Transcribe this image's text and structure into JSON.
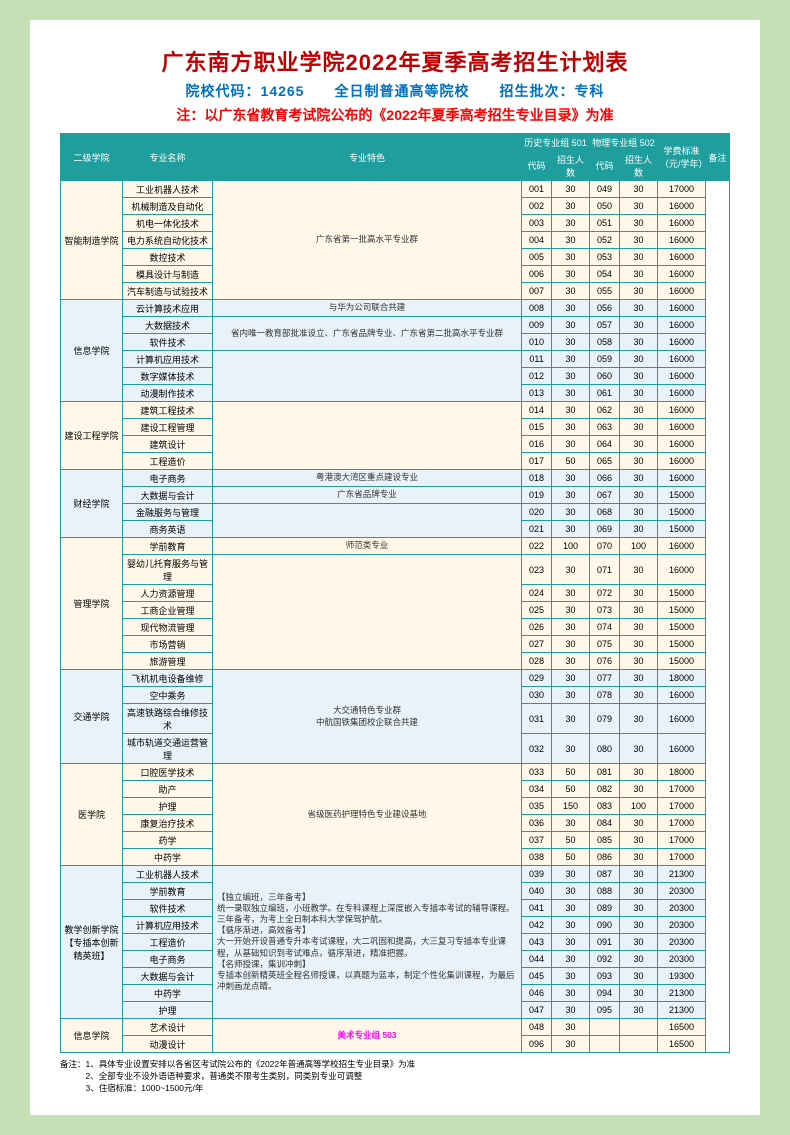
{
  "title": "广东南方职业学院2022年夏季高考招生计划表",
  "subtitle": "院校代码：14265　　全日制普通高等院校　　招生批次：专科",
  "note": "注：以广东省教育考试院公布的《2022年夏季高考招生专业目录》为准",
  "headers": {
    "college": "二级学院",
    "major": "专业名称",
    "feature": "专业特色",
    "hist": "历史专业组 501",
    "phys": "物理专业组 502",
    "code": "代码",
    "quota": "招生人数",
    "fee": "学费标准（元/学年）",
    "remark": "备注"
  },
  "footer": [
    "备注：1、具体专业设置安排以各省区考试院公布的《2022年普通高等学校招生专业目录》为准",
    "　　　2、全部专业不设外语语种要求，普通类不限考生类别，同类别专业可调整",
    "　　　3、住宿标准：1000~1500元/年"
  ],
  "colleges": [
    {
      "name": "智能制造学院",
      "feature": "广东省第一批高水平专业群",
      "rows": [
        {
          "m": "工业机器人技术",
          "c1": "001",
          "q1": "30",
          "c2": "049",
          "q2": "30",
          "f": "17000"
        },
        {
          "m": "机械制造及自动化",
          "c1": "002",
          "q1": "30",
          "c2": "050",
          "q2": "30",
          "f": "16000"
        },
        {
          "m": "机电一体化技术",
          "c1": "003",
          "q1": "30",
          "c2": "051",
          "q2": "30",
          "f": "16000"
        },
        {
          "m": "电力系统自动化技术",
          "c1": "004",
          "q1": "30",
          "c2": "052",
          "q2": "30",
          "f": "16000"
        },
        {
          "m": "数控技术",
          "c1": "005",
          "q1": "30",
          "c2": "053",
          "q2": "30",
          "f": "16000"
        },
        {
          "m": "模具设计与制造",
          "c1": "006",
          "q1": "30",
          "c2": "054",
          "q2": "30",
          "f": "16000"
        },
        {
          "m": "汽车制造与试验技术",
          "c1": "007",
          "q1": "30",
          "c2": "055",
          "q2": "30",
          "f": "16000"
        }
      ]
    },
    {
      "name": "信息学院",
      "rows": [
        {
          "m": "云计算技术应用",
          "ft": "与华为公司联合共建",
          "c1": "008",
          "q1": "30",
          "c2": "056",
          "q2": "30",
          "f": "16000"
        },
        {
          "m": "大数据技术",
          "ft": "省内唯一教育部批准设立、广东省品牌专业、广东省第二批高水平专业群",
          "fspan": 2,
          "c1": "009",
          "q1": "30",
          "c2": "057",
          "q2": "30",
          "f": "16000"
        },
        {
          "m": "软件技术",
          "c1": "010",
          "q1": "30",
          "c2": "058",
          "q2": "30",
          "f": "16000"
        },
        {
          "m": "计算机应用技术",
          "ft": "",
          "fspan": 3,
          "c1": "011",
          "q1": "30",
          "c2": "059",
          "q2": "30",
          "f": "16000"
        },
        {
          "m": "数字媒体技术",
          "c1": "012",
          "q1": "30",
          "c2": "060",
          "q2": "30",
          "f": "16000"
        },
        {
          "m": "动漫制作技术",
          "c1": "013",
          "q1": "30",
          "c2": "061",
          "q2": "30",
          "f": "16000"
        }
      ]
    },
    {
      "name": "建设工程学院",
      "feature": "",
      "rows": [
        {
          "m": "建筑工程技术",
          "c1": "014",
          "q1": "30",
          "c2": "062",
          "q2": "30",
          "f": "16000"
        },
        {
          "m": "建设工程管理",
          "c1": "015",
          "q1": "30",
          "c2": "063",
          "q2": "30",
          "f": "16000"
        },
        {
          "m": "建筑设计",
          "c1": "016",
          "q1": "30",
          "c2": "064",
          "q2": "30",
          "f": "16000"
        },
        {
          "m": "工程造价",
          "c1": "017",
          "q1": "50",
          "c2": "065",
          "q2": "30",
          "f": "16000"
        }
      ]
    },
    {
      "name": "财经学院",
      "rows": [
        {
          "m": "电子商务",
          "ft": "粤港澳大湾区重点建设专业",
          "c1": "018",
          "q1": "30",
          "c2": "066",
          "q2": "30",
          "f": "16000"
        },
        {
          "m": "大数据与会计",
          "ft": "广东省品牌专业",
          "c1": "019",
          "q1": "30",
          "c2": "067",
          "q2": "30",
          "f": "15000"
        },
        {
          "m": "金融服务与管理",
          "ft": "",
          "fspan": 2,
          "c1": "020",
          "q1": "30",
          "c2": "068",
          "q2": "30",
          "f": "15000"
        },
        {
          "m": "商务英语",
          "c1": "021",
          "q1": "30",
          "c2": "069",
          "q2": "30",
          "f": "15000"
        }
      ]
    },
    {
      "name": "管理学院",
      "rows": [
        {
          "m": "学前教育",
          "ft": "师范类专业",
          "c1": "022",
          "q1": "100",
          "c2": "070",
          "q2": "100",
          "f": "16000"
        },
        {
          "m": "婴幼儿托育服务与管理",
          "ft": "",
          "fspan": 6,
          "c1": "023",
          "q1": "30",
          "c2": "071",
          "q2": "30",
          "f": "16000"
        },
        {
          "m": "人力资源管理",
          "c1": "024",
          "q1": "30",
          "c2": "072",
          "q2": "30",
          "f": "15000"
        },
        {
          "m": "工商企业管理",
          "c1": "025",
          "q1": "30",
          "c2": "073",
          "q2": "30",
          "f": "15000"
        },
        {
          "m": "现代物流管理",
          "c1": "026",
          "q1": "30",
          "c2": "074",
          "q2": "30",
          "f": "15000"
        },
        {
          "m": "市场营销",
          "c1": "027",
          "q1": "30",
          "c2": "075",
          "q2": "30",
          "f": "15000"
        },
        {
          "m": "旅游管理",
          "c1": "028",
          "q1": "30",
          "c2": "076",
          "q2": "30",
          "f": "15000"
        }
      ]
    },
    {
      "name": "交通学院",
      "feature": "大交通特色专业群\n中航国铁集团校企联合共建",
      "rows": [
        {
          "m": "飞机机电设备维修",
          "c1": "029",
          "q1": "30",
          "c2": "077",
          "q2": "30",
          "f": "18000"
        },
        {
          "m": "空中乘务",
          "c1": "030",
          "q1": "30",
          "c2": "078",
          "q2": "30",
          "f": "16000"
        },
        {
          "m": "高速铁路综合维修技术",
          "c1": "031",
          "q1": "30",
          "c2": "079",
          "q2": "30",
          "f": "16000"
        },
        {
          "m": "城市轨道交通运营管理",
          "c1": "032",
          "q1": "30",
          "c2": "080",
          "q2": "30",
          "f": "16000"
        }
      ]
    },
    {
      "name": "医学院",
      "feature": "省级医药护理特色专业建设基地",
      "rows": [
        {
          "m": "口腔医学技术",
          "c1": "033",
          "q1": "50",
          "c2": "081",
          "q2": "30",
          "f": "18000"
        },
        {
          "m": "助产",
          "c1": "034",
          "q1": "50",
          "c2": "082",
          "q2": "30",
          "f": "17000"
        },
        {
          "m": "护理",
          "c1": "035",
          "q1": "150",
          "c2": "083",
          "q2": "100",
          "f": "17000"
        },
        {
          "m": "康复治疗技术",
          "c1": "036",
          "q1": "30",
          "c2": "084",
          "q2": "30",
          "f": "17000"
        },
        {
          "m": "药学",
          "c1": "037",
          "q1": "50",
          "c2": "085",
          "q2": "30",
          "f": "17000"
        },
        {
          "m": "中药学",
          "c1": "038",
          "q1": "50",
          "c2": "086",
          "q2": "30",
          "f": "17000"
        }
      ]
    },
    {
      "name": "教学创新学院\n【专插本创新精英班】",
      "feature": "【独立编班，三年备考】\n统一录取独立编班，小班教学。在专科课程上深度嵌入专插本考试的辅导课程。三年备考，为考上全日制本科大学保驾护航。\n【循序渐进，高效备考】\n大一开始开设普通专升本考试课程，大二巩固和提高，大三复习专插本专业课程，从基础知识到考试难点，循序渐进，精准把握。\n【名师授课，集训冲刺】\n专插本创新精英班全程名师授课，以真题为蓝本，制定个性化集训课程，为最后冲刺画龙点睛。",
      "featureLeft": true,
      "rows": [
        {
          "m": "工业机器人技术",
          "c1": "039",
          "q1": "30",
          "c2": "087",
          "q2": "30",
          "f": "21300"
        },
        {
          "m": "学前教育",
          "c1": "040",
          "q1": "30",
          "c2": "088",
          "q2": "30",
          "f": "20300"
        },
        {
          "m": "软件技术",
          "c1": "041",
          "q1": "30",
          "c2": "089",
          "q2": "30",
          "f": "20300"
        },
        {
          "m": "计算机应用技术",
          "c1": "042",
          "q1": "30",
          "c2": "090",
          "q2": "30",
          "f": "20300"
        },
        {
          "m": "工程造价",
          "c1": "043",
          "q1": "30",
          "c2": "091",
          "q2": "30",
          "f": "20300"
        },
        {
          "m": "电子商务",
          "c1": "044",
          "q1": "30",
          "c2": "092",
          "q2": "30",
          "f": "20300"
        },
        {
          "m": "大数据与会计",
          "c1": "045",
          "q1": "30",
          "c2": "093",
          "q2": "30",
          "f": "19300"
        },
        {
          "m": "中药学",
          "c1": "046",
          "q1": "30",
          "c2": "094",
          "q2": "30",
          "f": "21300"
        },
        {
          "m": "护理",
          "c1": "047",
          "q1": "30",
          "c2": "095",
          "q2": "30",
          "f": "21300"
        }
      ]
    },
    {
      "name": "信息学院",
      "feature": "美术专业组 503",
      "featureArt": true,
      "rows": [
        {
          "m": "艺术设计",
          "c1": "048",
          "q1": "30",
          "c2": "",
          "q2": "",
          "f": "16500"
        },
        {
          "m": "动漫设计",
          "c1": "096",
          "q1": "30",
          "c2": "",
          "q2": "",
          "f": "16500"
        }
      ]
    }
  ]
}
